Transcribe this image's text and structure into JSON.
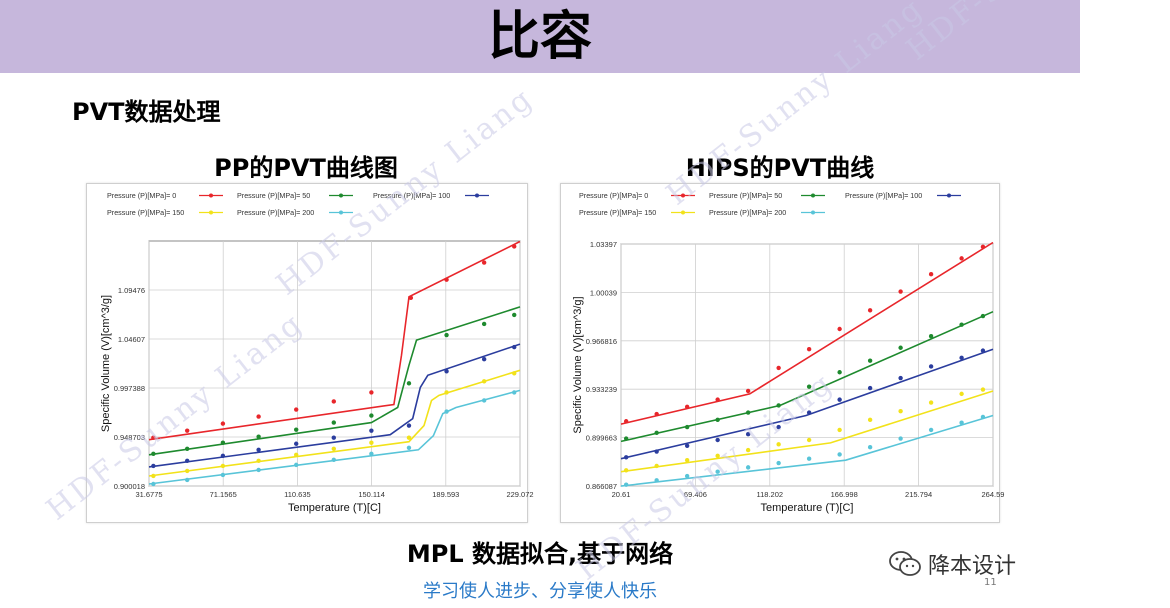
{
  "slide_title": "比容",
  "section_title": "PVT数据处理",
  "footer": {
    "main": "MPL 数据拟合,基于网络",
    "sub": "学习使人进步、分享使人快乐",
    "page_number": "11",
    "wechat_label": "降本设计"
  },
  "watermark_text": "HDF-Sunny Liang",
  "colors": {
    "banner": "#c6b7dc",
    "p0": "#e8262b",
    "p50": "#1e8a2e",
    "p100": "#2b3d9e",
    "p150": "#f2e21a",
    "p200": "#58c4d8"
  },
  "chart_data": [
    {
      "type": "line",
      "title": "PP的PVT曲线图",
      "xlabel": "Temperature (T)[C]",
      "ylabel": "Specific Volume (V)[cm^3/g]",
      "xlim": [
        31.6775,
        229.072
      ],
      "ylim": [
        0.900018,
        1.14345
      ],
      "x_ticks": [
        "31.6775",
        "71.1565",
        "110.635",
        "150.114",
        "189.593",
        "229.072"
      ],
      "y_ticks": [
        "0.900018",
        "0.948703",
        "0.997388",
        "1.04607",
        "1.09476"
      ],
      "grid": true,
      "legend": "top",
      "series": [
        {
          "name": "Pressure (P)[MPa]= 0",
          "color": "#e8262b",
          "line": [
            [
              31.7,
              0.946
            ],
            [
              162,
              0.981
            ],
            [
              166,
              1.03
            ],
            [
              170,
              1.088
            ],
            [
              229.07,
              1.143
            ]
          ],
          "points": [
            [
              34,
              0.948
            ],
            [
              52,
              0.955
            ],
            [
              71,
              0.962
            ],
            [
              90,
              0.969
            ],
            [
              110,
              0.976
            ],
            [
              130,
              0.984
            ],
            [
              150,
              0.993
            ],
            [
              171,
              1.087
            ],
            [
              190,
              1.105
            ],
            [
              210,
              1.122
            ],
            [
              226,
              1.138
            ]
          ]
        },
        {
          "name": "Pressure (P)[MPa]= 50",
          "color": "#1e8a2e",
          "line": [
            [
              31.7,
              0.931
            ],
            [
              150,
              0.963
            ],
            [
              164,
              0.978
            ],
            [
              170,
              1.02
            ],
            [
              174,
              1.045
            ],
            [
              229.07,
              1.078
            ]
          ],
          "points": [
            [
              34,
              0.932
            ],
            [
              52,
              0.937
            ],
            [
              71,
              0.943
            ],
            [
              90,
              0.949
            ],
            [
              110,
              0.956
            ],
            [
              130,
              0.963
            ],
            [
              150,
              0.97
            ],
            [
              170,
              1.002
            ],
            [
              190,
              1.05
            ],
            [
              210,
              1.061
            ],
            [
              226,
              1.07
            ]
          ]
        },
        {
          "name": "Pressure (P)[MPa]= 100",
          "color": "#2b3d9e",
          "line": [
            [
              31.7,
              0.919
            ],
            [
              160,
              0.951
            ],
            [
              172,
              0.967
            ],
            [
              176,
              0.998
            ],
            [
              180,
              1.01
            ],
            [
              229.07,
              1.041
            ]
          ],
          "points": [
            [
              34,
              0.92
            ],
            [
              52,
              0.925
            ],
            [
              71,
              0.93
            ],
            [
              90,
              0.936
            ],
            [
              110,
              0.942
            ],
            [
              130,
              0.948
            ],
            [
              150,
              0.955
            ],
            [
              170,
              0.96
            ],
            [
              190,
              1.014
            ],
            [
              210,
              1.026
            ],
            [
              226,
              1.038
            ]
          ]
        },
        {
          "name": "Pressure (P)[MPa]= 150",
          "color": "#f2e21a",
          "line": [
            [
              31.7,
              0.91
            ],
            [
              170,
              0.944
            ],
            [
              178,
              0.96
            ],
            [
              182,
              0.985
            ],
            [
              186,
              0.99
            ],
            [
              229.07,
              1.015
            ]
          ],
          "points": [
            [
              34,
              0.91
            ],
            [
              52,
              0.915
            ],
            [
              71,
              0.92
            ],
            [
              90,
              0.925
            ],
            [
              110,
              0.931
            ],
            [
              130,
              0.937
            ],
            [
              150,
              0.943
            ],
            [
              170,
              0.948
            ],
            [
              190,
              0.993
            ],
            [
              210,
              1.004
            ],
            [
              226,
              1.012
            ]
          ]
        },
        {
          "name": "Pressure (P)[MPa]= 200",
          "color": "#58c4d8",
          "line": [
            [
              31.7,
              0.902
            ],
            [
              175,
              0.936
            ],
            [
              183,
              0.95
            ],
            [
              188,
              0.972
            ],
            [
              195,
              0.978
            ],
            [
              229.07,
              0.995
            ]
          ],
          "points": [
            [
              34,
              0.902
            ],
            [
              52,
              0.906
            ],
            [
              71,
              0.911
            ],
            [
              90,
              0.916
            ],
            [
              110,
              0.921
            ],
            [
              130,
              0.926
            ],
            [
              150,
              0.932
            ],
            [
              170,
              0.938
            ],
            [
              190,
              0.974
            ],
            [
              210,
              0.985
            ],
            [
              226,
              0.993
            ]
          ]
        }
      ]
    },
    {
      "type": "line",
      "title": "HIPS的PVT曲线",
      "xlabel": "Temperature (T)[C]",
      "ylabel": "Specific Volume (V)[cm^3/g]",
      "xlim": [
        20.61,
        264.59
      ],
      "ylim": [
        0.866087,
        1.03397
      ],
      "x_ticks": [
        "20.61",
        "69.406",
        "118.202",
        "166.998",
        "215.794",
        "264.59"
      ],
      "y_ticks": [
        "0.866087",
        "0.899663",
        "0.933239",
        "0.966816",
        "1.00039",
        "1.03397"
      ],
      "grid": true,
      "legend": "top",
      "series": [
        {
          "name": "Pressure (P)[MPa]= 0",
          "color": "#e8262b",
          "line": [
            [
              20.61,
              0.909
            ],
            [
              105,
              0.93
            ],
            [
              264.59,
              1.035
            ]
          ],
          "points": [
            [
              24,
              0.911
            ],
            [
              44,
              0.916
            ],
            [
              64,
              0.921
            ],
            [
              84,
              0.926
            ],
            [
              104,
              0.932
            ],
            [
              124,
              0.948
            ],
            [
              144,
              0.961
            ],
            [
              164,
              0.975
            ],
            [
              184,
              0.988
            ],
            [
              204,
              1.001
            ],
            [
              224,
              1.013
            ],
            [
              244,
              1.024
            ],
            [
              258,
              1.032
            ]
          ]
        },
        {
          "name": "Pressure (P)[MPa]= 50",
          "color": "#1e8a2e",
          "line": [
            [
              20.61,
              0.897
            ],
            [
              125,
              0.922
            ],
            [
              264.59,
              0.987
            ]
          ],
          "points": [
            [
              24,
              0.899
            ],
            [
              44,
              0.903
            ],
            [
              64,
              0.907
            ],
            [
              84,
              0.912
            ],
            [
              104,
              0.917
            ],
            [
              124,
              0.922
            ],
            [
              144,
              0.935
            ],
            [
              164,
              0.945
            ],
            [
              184,
              0.953
            ],
            [
              204,
              0.962
            ],
            [
              224,
              0.97
            ],
            [
              244,
              0.978
            ],
            [
              258,
              0.984
            ]
          ]
        },
        {
          "name": "Pressure (P)[MPa]= 100",
          "color": "#2b3d9e",
          "line": [
            [
              20.61,
              0.885
            ],
            [
              142,
              0.915
            ],
            [
              264.59,
              0.961
            ]
          ],
          "points": [
            [
              24,
              0.886
            ],
            [
              44,
              0.89
            ],
            [
              64,
              0.894
            ],
            [
              84,
              0.898
            ],
            [
              104,
              0.902
            ],
            [
              124,
              0.907
            ],
            [
              144,
              0.917
            ],
            [
              164,
              0.926
            ],
            [
              184,
              0.934
            ],
            [
              204,
              0.941
            ],
            [
              224,
              0.949
            ],
            [
              244,
              0.955
            ],
            [
              258,
              0.96
            ]
          ]
        },
        {
          "name": "Pressure (P)[MPa]= 150",
          "color": "#f2e21a",
          "line": [
            [
              20.61,
              0.876
            ],
            [
              158,
              0.896
            ],
            [
              264.59,
              0.932
            ]
          ],
          "points": [
            [
              24,
              0.877
            ],
            [
              44,
              0.88
            ],
            [
              64,
              0.884
            ],
            [
              84,
              0.887
            ],
            [
              104,
              0.891
            ],
            [
              124,
              0.895
            ],
            [
              144,
              0.898
            ],
            [
              164,
              0.905
            ],
            [
              184,
              0.912
            ],
            [
              204,
              0.918
            ],
            [
              224,
              0.924
            ],
            [
              244,
              0.93
            ],
            [
              258,
              0.933
            ]
          ]
        },
        {
          "name": "Pressure (P)[MPa]= 200",
          "color": "#58c4d8",
          "line": [
            [
              20.61,
              0.866
            ],
            [
              168,
              0.884
            ],
            [
              264.59,
              0.915
            ]
          ],
          "points": [
            [
              24,
              0.867
            ],
            [
              44,
              0.87
            ],
            [
              64,
              0.873
            ],
            [
              84,
              0.876
            ],
            [
              104,
              0.879
            ],
            [
              124,
              0.882
            ],
            [
              144,
              0.885
            ],
            [
              164,
              0.888
            ],
            [
              184,
              0.893
            ],
            [
              204,
              0.899
            ],
            [
              224,
              0.905
            ],
            [
              244,
              0.91
            ],
            [
              258,
              0.914
            ]
          ]
        }
      ]
    }
  ]
}
